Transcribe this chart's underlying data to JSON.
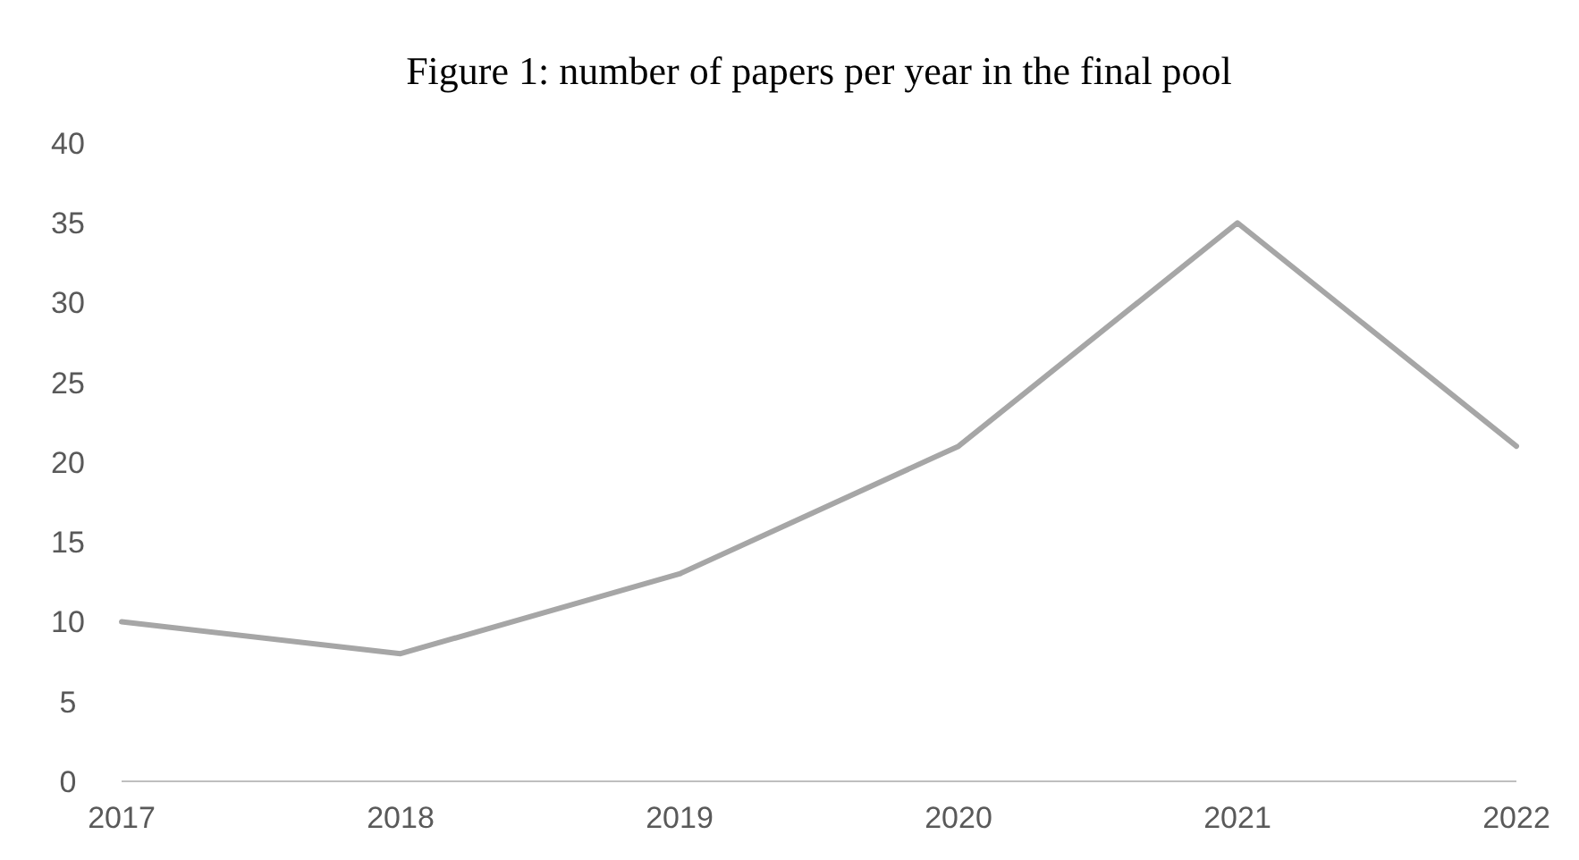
{
  "chart_data": {
    "type": "line",
    "title": "Figure 1: number of papers per year in the final pool",
    "categories": [
      "2017",
      "2018",
      "2019",
      "2020",
      "2021",
      "2022"
    ],
    "series": [
      {
        "color": "#a6a6a6",
        "values": [
          10,
          8,
          13,
          21,
          35,
          21
        ]
      }
    ],
    "ylim": [
      0,
      40
    ],
    "yticks": [
      0,
      5,
      10,
      15,
      20,
      25,
      30,
      35,
      40
    ],
    "grid": false,
    "marker": "none",
    "line_style": "solid"
  }
}
